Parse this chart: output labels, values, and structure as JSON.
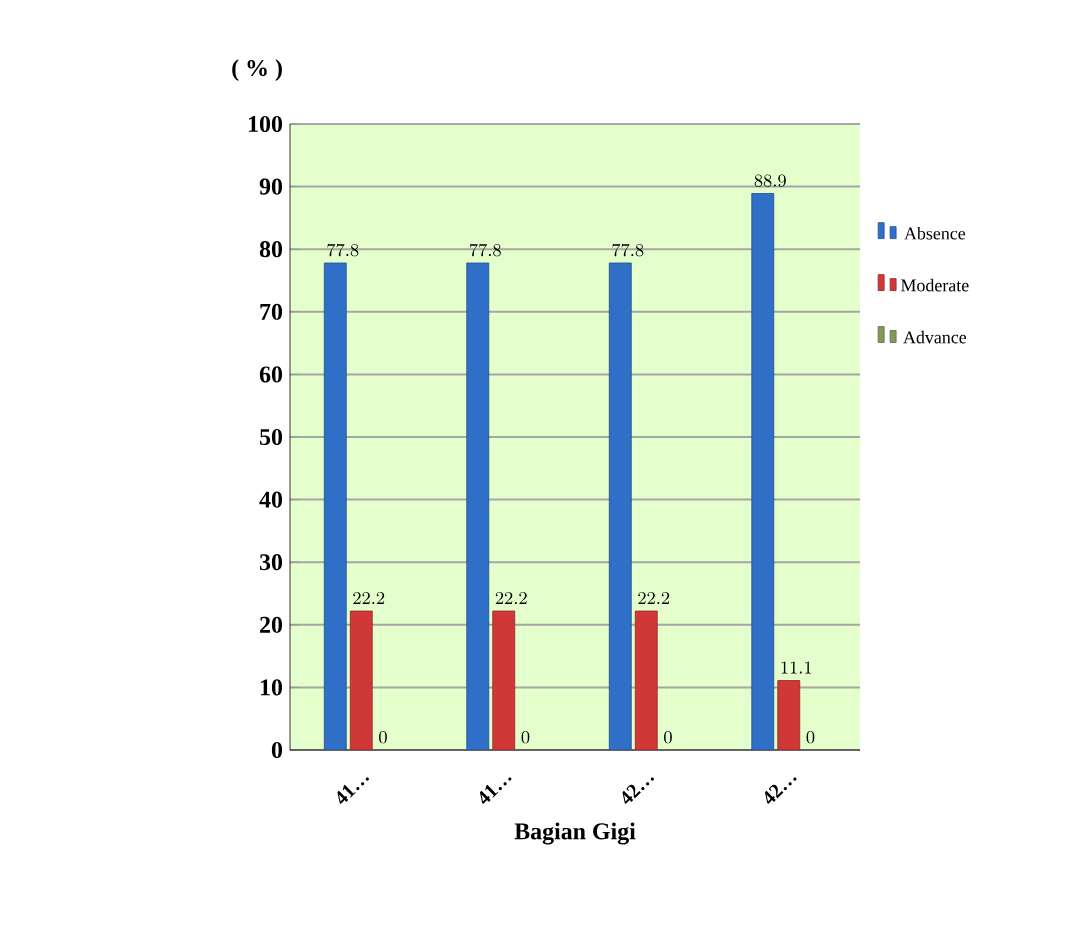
{
  "chart_data": {
    "type": "bar",
    "xlabel": "Bagian Gigi",
    "ylabel": "( % )",
    "categories": [
      "41…",
      "41…",
      "42…",
      "42…"
    ],
    "series": [
      {
        "name": "Absence",
        "color": "#2f6fc8",
        "values": [
          77.8,
          77.8,
          77.8,
          88.9
        ]
      },
      {
        "name": "Moderate",
        "color": "#d03838",
        "values": [
          22.2,
          22.2,
          22.2,
          11.1
        ]
      },
      {
        "name": "Advance",
        "color": "#7f9a5a",
        "values": [
          0,
          0,
          0,
          0
        ]
      }
    ],
    "ylim": [
      0,
      100
    ],
    "yticks": [
      0,
      10,
      20,
      30,
      40,
      50,
      60,
      70,
      80,
      90,
      100
    ],
    "grid": "y",
    "legend": "right",
    "data_labels": true
  }
}
